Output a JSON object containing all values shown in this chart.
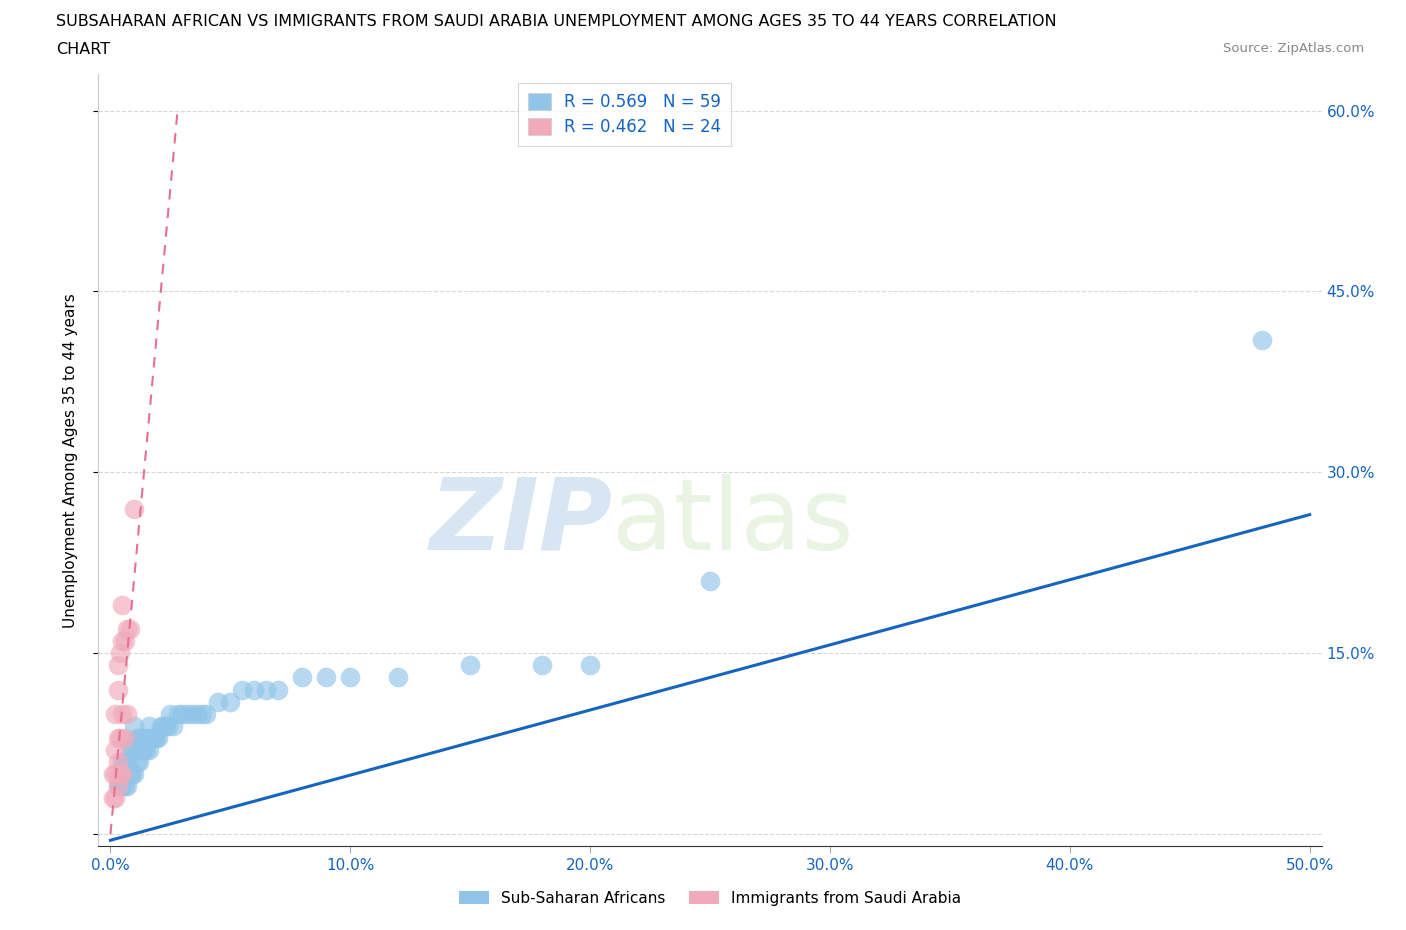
{
  "title_line1": "SUBSAHARAN AFRICAN VS IMMIGRANTS FROM SAUDI ARABIA UNEMPLOYMENT AMONG AGES 35 TO 44 YEARS CORRELATION",
  "title_line2": "CHART",
  "source_text": "Source: ZipAtlas.com",
  "ylabel": "Unemployment Among Ages 35 to 44 years",
  "xlabel": "",
  "xlim": [
    -0.005,
    0.505
  ],
  "ylim": [
    -0.01,
    0.63
  ],
  "xticks": [
    0.0,
    0.1,
    0.2,
    0.3,
    0.4,
    0.5
  ],
  "yticks": [
    0.0,
    0.15,
    0.3,
    0.45,
    0.6
  ],
  "xticklabels": [
    "0.0%",
    "10.0%",
    "20.0%",
    "30.0%",
    "40.0%",
    "50.0%"
  ],
  "yticklabels_right": [
    "",
    "15.0%",
    "30.0%",
    "45.0%",
    "60.0%"
  ],
  "blue_color": "#90c4e8",
  "pink_color": "#f0aabb",
  "blue_line_color": "#1565c0",
  "pink_line_color": "#e57090",
  "tick_label_color": "#1565c0",
  "legend_text_color": "#1565c0",
  "R_blue": 0.569,
  "N_blue": 59,
  "R_pink": 0.462,
  "N_pink": 24,
  "watermark_zip": "ZIP",
  "watermark_atlas": "atlas",
  "blue_trend_x0": 0.0,
  "blue_trend_y0": -0.005,
  "blue_trend_x1": 0.5,
  "blue_trend_y1": 0.265,
  "pink_trend_x0": 0.0,
  "pink_trend_y0": 0.0,
  "pink_trend_x1": 0.028,
  "pink_trend_y1": 0.6,
  "blue_x": [
    0.003,
    0.004,
    0.005,
    0.005,
    0.006,
    0.006,
    0.007,
    0.007,
    0.008,
    0.008,
    0.009,
    0.009,
    0.01,
    0.01,
    0.01,
    0.011,
    0.011,
    0.012,
    0.012,
    0.013,
    0.013,
    0.014,
    0.014,
    0.015,
    0.015,
    0.016,
    0.016,
    0.017,
    0.018,
    0.019,
    0.02,
    0.021,
    0.022,
    0.023,
    0.024,
    0.025,
    0.026,
    0.028,
    0.03,
    0.032,
    0.034,
    0.036,
    0.038,
    0.04,
    0.045,
    0.05,
    0.055,
    0.06,
    0.065,
    0.07,
    0.08,
    0.09,
    0.1,
    0.12,
    0.15,
    0.18,
    0.2,
    0.25,
    0.48
  ],
  "blue_y": [
    0.04,
    0.04,
    0.04,
    0.06,
    0.04,
    0.06,
    0.04,
    0.06,
    0.05,
    0.07,
    0.05,
    0.07,
    0.05,
    0.07,
    0.09,
    0.06,
    0.08,
    0.06,
    0.08,
    0.07,
    0.08,
    0.07,
    0.08,
    0.07,
    0.08,
    0.07,
    0.09,
    0.08,
    0.08,
    0.08,
    0.08,
    0.09,
    0.09,
    0.09,
    0.09,
    0.1,
    0.09,
    0.1,
    0.1,
    0.1,
    0.1,
    0.1,
    0.1,
    0.1,
    0.11,
    0.11,
    0.12,
    0.12,
    0.12,
    0.12,
    0.13,
    0.13,
    0.13,
    0.13,
    0.14,
    0.14,
    0.14,
    0.21,
    0.41
  ],
  "pink_x": [
    0.001,
    0.001,
    0.002,
    0.002,
    0.002,
    0.002,
    0.003,
    0.003,
    0.003,
    0.003,
    0.003,
    0.004,
    0.004,
    0.004,
    0.005,
    0.005,
    0.005,
    0.005,
    0.006,
    0.006,
    0.007,
    0.007,
    0.008,
    0.01
  ],
  "pink_y": [
    0.03,
    0.05,
    0.03,
    0.05,
    0.07,
    0.1,
    0.04,
    0.06,
    0.08,
    0.12,
    0.14,
    0.05,
    0.08,
    0.15,
    0.05,
    0.1,
    0.16,
    0.19,
    0.08,
    0.16,
    0.1,
    0.17,
    0.17,
    0.27
  ]
}
